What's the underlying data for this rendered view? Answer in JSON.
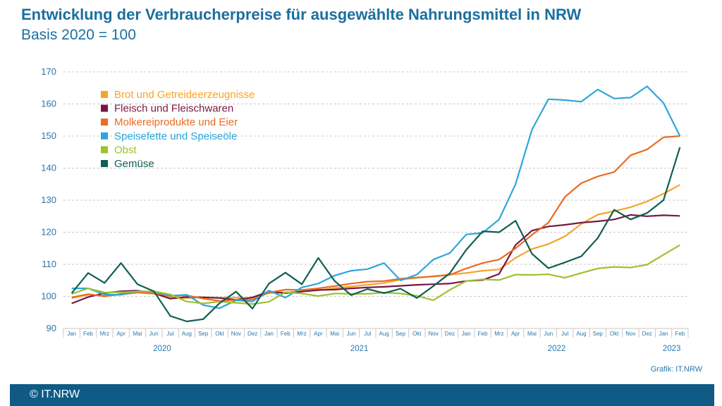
{
  "header": {
    "title": "Entwicklung der Verbraucherpreise für ausgewählte Nahrungsmittel in NRW",
    "subtitle": "Basis 2020 = 100"
  },
  "source": "Grafik: IT.NRW",
  "footer": {
    "text": "© IT.NRW"
  },
  "colors": {
    "axis_text": "#2a76a8",
    "grid": "#c8c8c8",
    "footer_bg": "#0f5b86"
  },
  "chart_data": {
    "type": "line",
    "title": "Entwicklung der Verbraucherpreise für ausgewählte Nahrungsmittel in NRW",
    "subtitle": "Basis 2020 = 100",
    "xlabel": "",
    "ylabel": "",
    "ylim": [
      90,
      170
    ],
    "yticks": [
      90,
      100,
      110,
      120,
      130,
      140,
      150,
      160,
      170
    ],
    "grid": "horizontal dashed",
    "legend_position": "top-left",
    "x": [
      "Jan",
      "Feb",
      "Mrz",
      "Apr",
      "Mai",
      "Jun",
      "Jul",
      "Aug",
      "Sep",
      "Okt",
      "Nov",
      "Dez",
      "Jan",
      "Feb",
      "Mrz",
      "Apr",
      "Mai",
      "Jun",
      "Jul",
      "Aug",
      "Sep",
      "Okt",
      "Nov",
      "Dez",
      "Jan",
      "Feb",
      "Mrz",
      "Apr",
      "Mai",
      "Jun",
      "Jul",
      "Aug",
      "Sep",
      "Okt",
      "Nov",
      "Dez",
      "Jan",
      "Feb"
    ],
    "years": [
      {
        "label": "2020",
        "start": 0,
        "end": 11
      },
      {
        "label": "2021",
        "start": 12,
        "end": 23
      },
      {
        "label": "2022",
        "start": 24,
        "end": 35
      },
      {
        "label": "2023",
        "start": 36,
        "end": 37
      }
    ],
    "series": [
      {
        "name": "Brot und Getreideerzeugnisse",
        "color": "#f5a42a",
        "values": [
          99.5,
          100.5,
          100.2,
          100.5,
          101.2,
          100.8,
          99.8,
          99.5,
          99.7,
          99.6,
          99.6,
          99.5,
          101,
          101.3,
          101.5,
          101.9,
          102.6,
          103.1,
          103.6,
          104.2,
          105.2,
          105.8,
          106.3,
          106.8,
          107.3,
          108,
          108.4,
          112,
          114.8,
          116.3,
          118.7,
          122.6,
          125.5,
          126.6,
          127.8,
          129.6,
          132,
          134.8
        ]
      },
      {
        "name": "Fleisch und Fleischwaren",
        "color": "#7a1740",
        "values": [
          97.8,
          99.8,
          101,
          101.6,
          101.8,
          101,
          99.3,
          99.8,
          99.7,
          99.5,
          98.9,
          99.7,
          101.5,
          101,
          101.5,
          102,
          102.1,
          102.5,
          102.8,
          103,
          103.3,
          103.6,
          103.8,
          104,
          104.8,
          105.1,
          107,
          116,
          120.5,
          121.8,
          122.3,
          123,
          123.4,
          124,
          125.4,
          125,
          125.3,
          125.1
        ]
      },
      {
        "name": "Molkereiprodukte und Eier",
        "color": "#ea6b24",
        "values": [
          99.7,
          100.7,
          100,
          100.8,
          101.2,
          101,
          100.2,
          100.3,
          99.3,
          98.6,
          98.9,
          99,
          101.2,
          102.1,
          102,
          102.5,
          103.2,
          104,
          104.6,
          104.8,
          105.5,
          105.9,
          106.2,
          106.7,
          108.7,
          110.4,
          111.5,
          115,
          119.2,
          123,
          131,
          135.3,
          137.4,
          138.8,
          144,
          145.8,
          149.6,
          150
        ]
      },
      {
        "name": "Speisefette und Speiseöle",
        "color": "#2ea6da",
        "values": [
          102.5,
          102.5,
          100.6,
          100.5,
          101.6,
          101.5,
          100.2,
          100.5,
          97.3,
          96.3,
          98.8,
          98.4,
          101.8,
          99.6,
          102.8,
          104,
          106.5,
          108,
          108.5,
          110.4,
          105,
          106.8,
          111.5,
          113.5,
          119.3,
          119.8,
          124,
          135,
          152,
          161.5,
          161.2,
          160.7,
          164.5,
          161.7,
          162,
          165.5,
          160.3,
          150
        ]
      },
      {
        "name": "Obst",
        "color": "#9dc22e",
        "values": [
          100.8,
          102.5,
          101.2,
          101.3,
          101.5,
          101.6,
          100.6,
          98.4,
          97.8,
          98.4,
          98,
          97.6,
          98.3,
          101.3,
          100.9,
          100.1,
          100.9,
          100.8,
          100.8,
          101.2,
          100.9,
          100.2,
          98.8,
          102,
          104.8,
          105.3,
          105.1,
          106.8,
          106.7,
          106.9,
          105.8,
          107.3,
          108.7,
          109.2,
          109,
          109.9,
          113,
          116
        ]
      },
      {
        "name": "Gemüse",
        "color": "#0f5f52",
        "values": [
          101,
          107.3,
          104.2,
          110.4,
          103.8,
          101.6,
          93.9,
          92.2,
          92.9,
          97.9,
          101.5,
          96.2,
          104,
          107.4,
          103.8,
          112,
          104.8,
          100.4,
          102.3,
          101,
          102.4,
          99.5,
          103.2,
          107.2,
          114.5,
          120.3,
          120,
          123.6,
          113.3,
          108.8,
          110.6,
          112.5,
          118.2,
          127,
          124,
          126,
          130,
          146.5
        ]
      }
    ]
  }
}
